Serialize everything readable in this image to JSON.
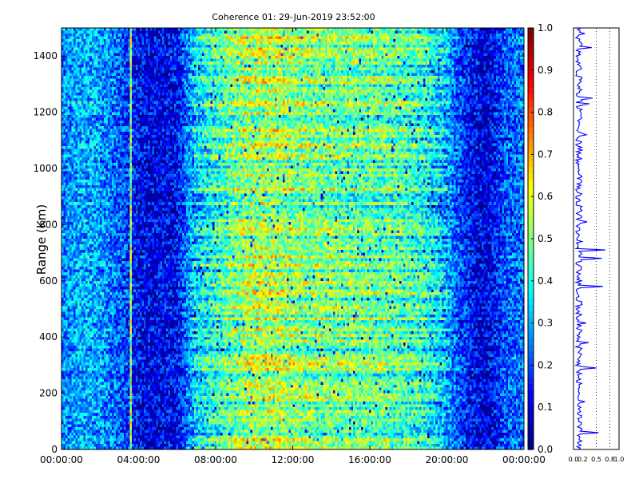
{
  "chart_data": {
    "type": "heatmap",
    "title": "Coherence 01: 29-Jun-2019 23:52:00",
    "ylabel": "Range (Km)",
    "xlabel": "",
    "x_tick_labels": [
      "00:00:00",
      "04:00:00",
      "08:00:00",
      "12:00:00",
      "16:00:00",
      "20:00:00",
      "00:00:00"
    ],
    "x_range_hours": [
      0,
      24
    ],
    "y_ticks": [
      0,
      200,
      400,
      600,
      800,
      1000,
      1200,
      1400
    ],
    "ylim": [
      0,
      1500
    ],
    "colorbar": {
      "min": 0.0,
      "max": 1.0,
      "colormap": "jet",
      "tick_labels": [
        "0.0",
        "0.1",
        "0.2",
        "0.3",
        "0.4",
        "0.5",
        "0.6",
        "0.7",
        "0.8",
        "0.9",
        "1.0"
      ]
    },
    "coherence_profile_by_hour": [
      {
        "hour": 0,
        "value": 0.25
      },
      {
        "hour": 1,
        "value": 0.3
      },
      {
        "hour": 2,
        "value": 0.28
      },
      {
        "hour": 3,
        "value": 0.22
      },
      {
        "hour": 4,
        "value": 0.12
      },
      {
        "hour": 5,
        "value": 0.1
      },
      {
        "hour": 6,
        "value": 0.12
      },
      {
        "hour": 7,
        "value": 0.35
      },
      {
        "hour": 8,
        "value": 0.42
      },
      {
        "hour": 9,
        "value": 0.5
      },
      {
        "hour": 10,
        "value": 0.55
      },
      {
        "hour": 11,
        "value": 0.55
      },
      {
        "hour": 12,
        "value": 0.52
      },
      {
        "hour": 13,
        "value": 0.5
      },
      {
        "hour": 14,
        "value": 0.5
      },
      {
        "hour": 15,
        "value": 0.48
      },
      {
        "hour": 16,
        "value": 0.48
      },
      {
        "hour": 17,
        "value": 0.47
      },
      {
        "hour": 18,
        "value": 0.45
      },
      {
        "hour": 19,
        "value": 0.4
      },
      {
        "hour": 20,
        "value": 0.3
      },
      {
        "hour": 21,
        "value": 0.15
      },
      {
        "hour": 22,
        "value": 0.08
      },
      {
        "hour": 23,
        "value": 0.2
      },
      {
        "hour": 24,
        "value": 0.25
      }
    ],
    "side_profile": {
      "type": "line",
      "x_tick_labels": [
        "0.0",
        "0.2",
        "0.5",
        "0.8",
        "1.0"
      ],
      "xlim": [
        0,
        1
      ],
      "dotted_gridlines_at": [
        0.5,
        0.8
      ],
      "ylim": [
        0,
        1500
      ],
      "typical_value": 0.12,
      "spikes": [
        {
          "range_km": 60,
          "value": 0.55
        },
        {
          "range_km": 170,
          "value": 0.25
        },
        {
          "range_km": 290,
          "value": 0.5
        },
        {
          "range_km": 380,
          "value": 0.33
        },
        {
          "range_km": 450,
          "value": 0.28
        },
        {
          "range_km": 580,
          "value": 0.65
        },
        {
          "range_km": 680,
          "value": 0.62
        },
        {
          "range_km": 710,
          "value": 0.7
        },
        {
          "range_km": 810,
          "value": 0.3
        },
        {
          "range_km": 1120,
          "value": 0.28
        },
        {
          "range_km": 1230,
          "value": 0.35
        },
        {
          "range_km": 1250,
          "value": 0.42
        },
        {
          "range_km": 1430,
          "value": 0.4
        },
        {
          "range_km": 1480,
          "value": 0.25
        }
      ],
      "color": "#0000ff"
    }
  }
}
